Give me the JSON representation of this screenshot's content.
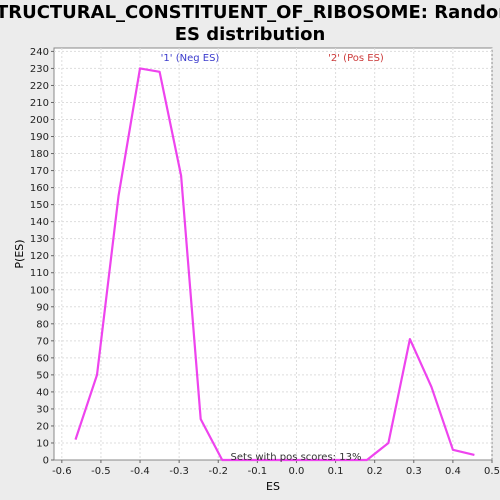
{
  "chart_data": {
    "type": "line",
    "title_line1": "STRUCTURAL_CONSTITUENT_OF_RIBOSOME: Random",
    "title_line2": "ES distribution",
    "xlabel": "ES",
    "ylabel": "P(ES)",
    "xlim": [
      -0.62,
      0.5
    ],
    "ylim": [
      0,
      242
    ],
    "xticks": [
      "-0.6",
      "-0.5",
      "-0.4",
      "-0.3",
      "-0.2",
      "-0.1",
      "0.0",
      "0.1",
      "0.2",
      "0.3",
      "0.4",
      "0.5"
    ],
    "xtick_values": [
      -0.6,
      -0.5,
      -0.4,
      -0.3,
      -0.2,
      -0.1,
      0.0,
      0.1,
      0.2,
      0.3,
      0.4,
      0.5
    ],
    "yticks": [
      0,
      10,
      20,
      30,
      40,
      50,
      60,
      70,
      80,
      90,
      100,
      110,
      120,
      130,
      140,
      150,
      160,
      170,
      180,
      190,
      200,
      210,
      220,
      230,
      240
    ],
    "grid": true,
    "series": [
      {
        "color": "#ee44ee",
        "x": [
          -0.565,
          -0.51,
          -0.455,
          -0.4,
          -0.35,
          -0.295,
          -0.245,
          -0.19,
          0.18,
          0.235,
          0.29,
          0.345,
          0.4,
          0.455
        ],
        "y": [
          12,
          50,
          155,
          230,
          228,
          167,
          24,
          0,
          0,
          10,
          71,
          43,
          6,
          3
        ]
      }
    ],
    "annotations": {
      "neg_label": "'1' (Neg ES)",
      "pos_label": "'2' (Pos ES)",
      "neg_color": "#3a3acc",
      "pos_color": "#cc3a3a",
      "footer": "Sets with pos scores: 13%"
    }
  }
}
